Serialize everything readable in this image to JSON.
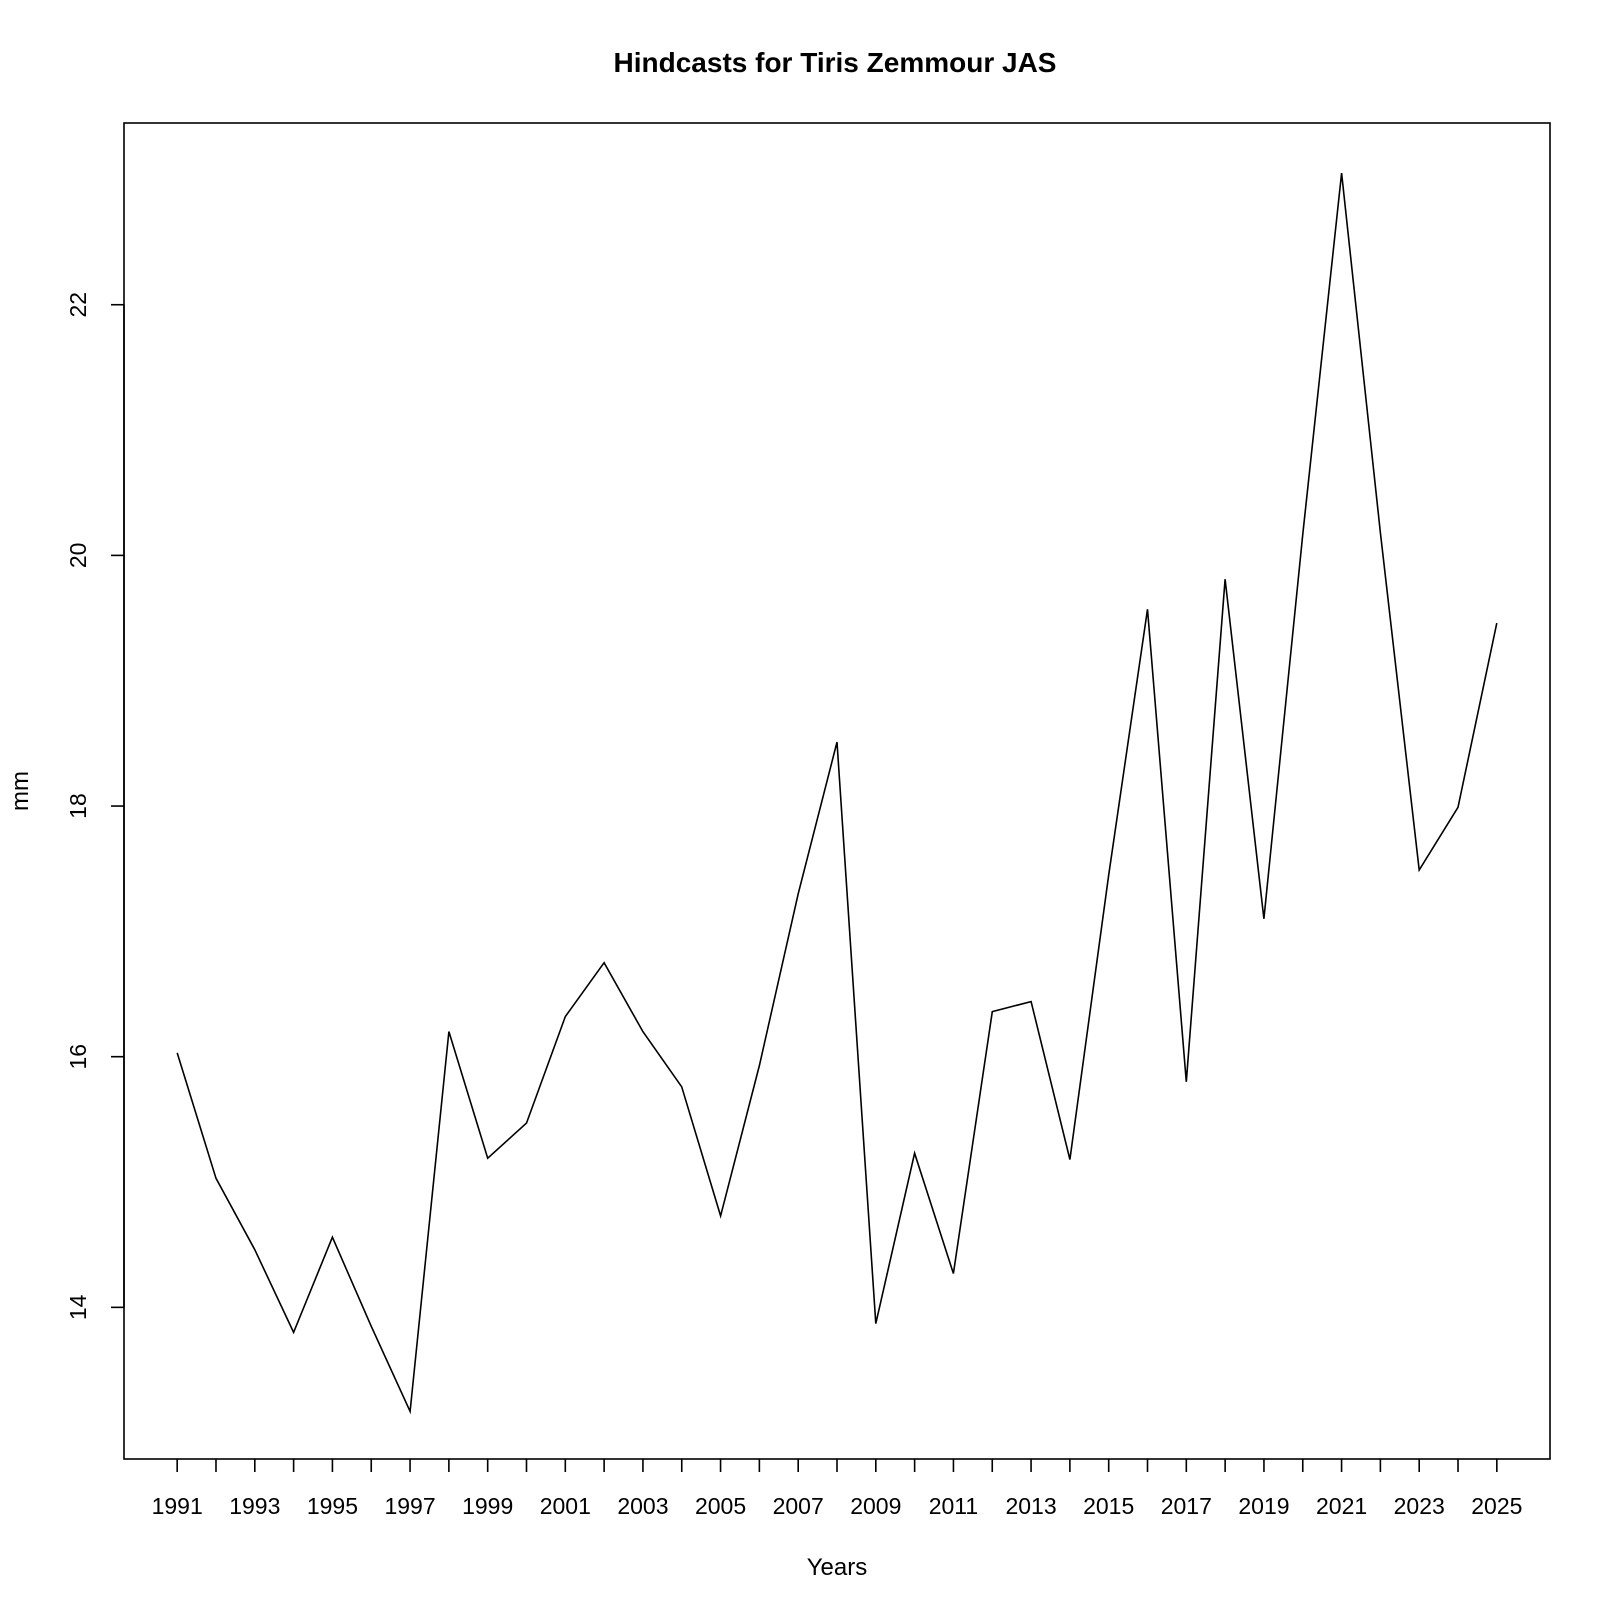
{
  "chart_data": {
    "type": "line",
    "title": "Hindcasts for Tiris Zemmour JAS",
    "xlabel": "Years",
    "ylabel": "mm",
    "x": [
      1991,
      1992,
      1993,
      1994,
      1995,
      1996,
      1997,
      1998,
      1999,
      2000,
      2001,
      2002,
      2003,
      2004,
      2005,
      2006,
      2007,
      2008,
      2009,
      2010,
      2011,
      2012,
      2013,
      2014,
      2015,
      2016,
      2017,
      2018,
      2019,
      2020,
      2021,
      2022,
      2023,
      2024,
      2025
    ],
    "values": [
      16.03,
      15.03,
      14.46,
      13.8,
      14.56,
      13.85,
      13.17,
      16.2,
      15.19,
      15.47,
      16.32,
      16.75,
      16.2,
      15.76,
      14.73,
      15.93,
      17.3,
      18.51,
      13.87,
      15.23,
      14.27,
      16.36,
      16.44,
      15.18,
      17.45,
      19.57,
      15.8,
      19.81,
      17.1,
      20.17,
      23.05,
      20.18,
      17.49,
      17.99,
      19.46
    ],
    "xticks": [
      "1991",
      "1993",
      "1995",
      "1997",
      "1999",
      "2001",
      "2003",
      "2005",
      "2007",
      "2009",
      "2011",
      "2013",
      "2015",
      "2017",
      "2019",
      "2021",
      "2023",
      "2025"
    ],
    "yticks": [
      "14",
      "16",
      "18",
      "20",
      "22"
    ],
    "xlim": [
      1989.63,
      2026.37
    ],
    "ylim": [
      12.79,
      23.45
    ],
    "grid": false,
    "legend": false
  }
}
